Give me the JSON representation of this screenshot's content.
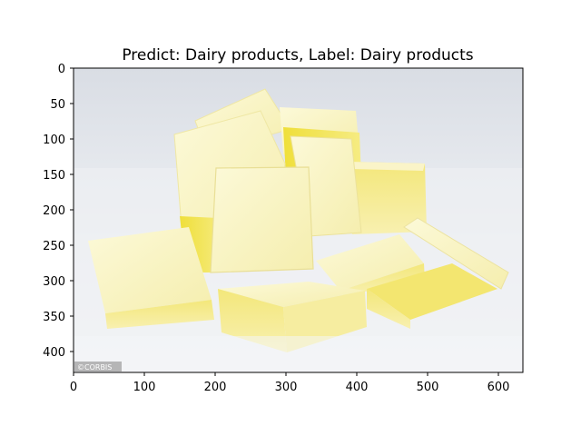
{
  "figure": {
    "title": "Predict: Dairy products, Label: Dairy products",
    "image": {
      "subject": "butter-pats",
      "watermark": "©CORBIS"
    },
    "x_axis": {
      "ticks": [
        "0",
        "100",
        "200",
        "300",
        "400",
        "500",
        "600"
      ]
    },
    "y_axis": {
      "ticks": [
        "0",
        "50",
        "100",
        "150",
        "200",
        "250",
        "300",
        "350",
        "400"
      ]
    },
    "colors": {
      "background_top": "#dfe3e8",
      "background_bottom": "#f3f4f6",
      "butter_light": "#faf6c4",
      "butter_mid": "#f3ea8e",
      "butter_shadow": "#e4d650",
      "butter_deep": "#f0e030"
    }
  }
}
